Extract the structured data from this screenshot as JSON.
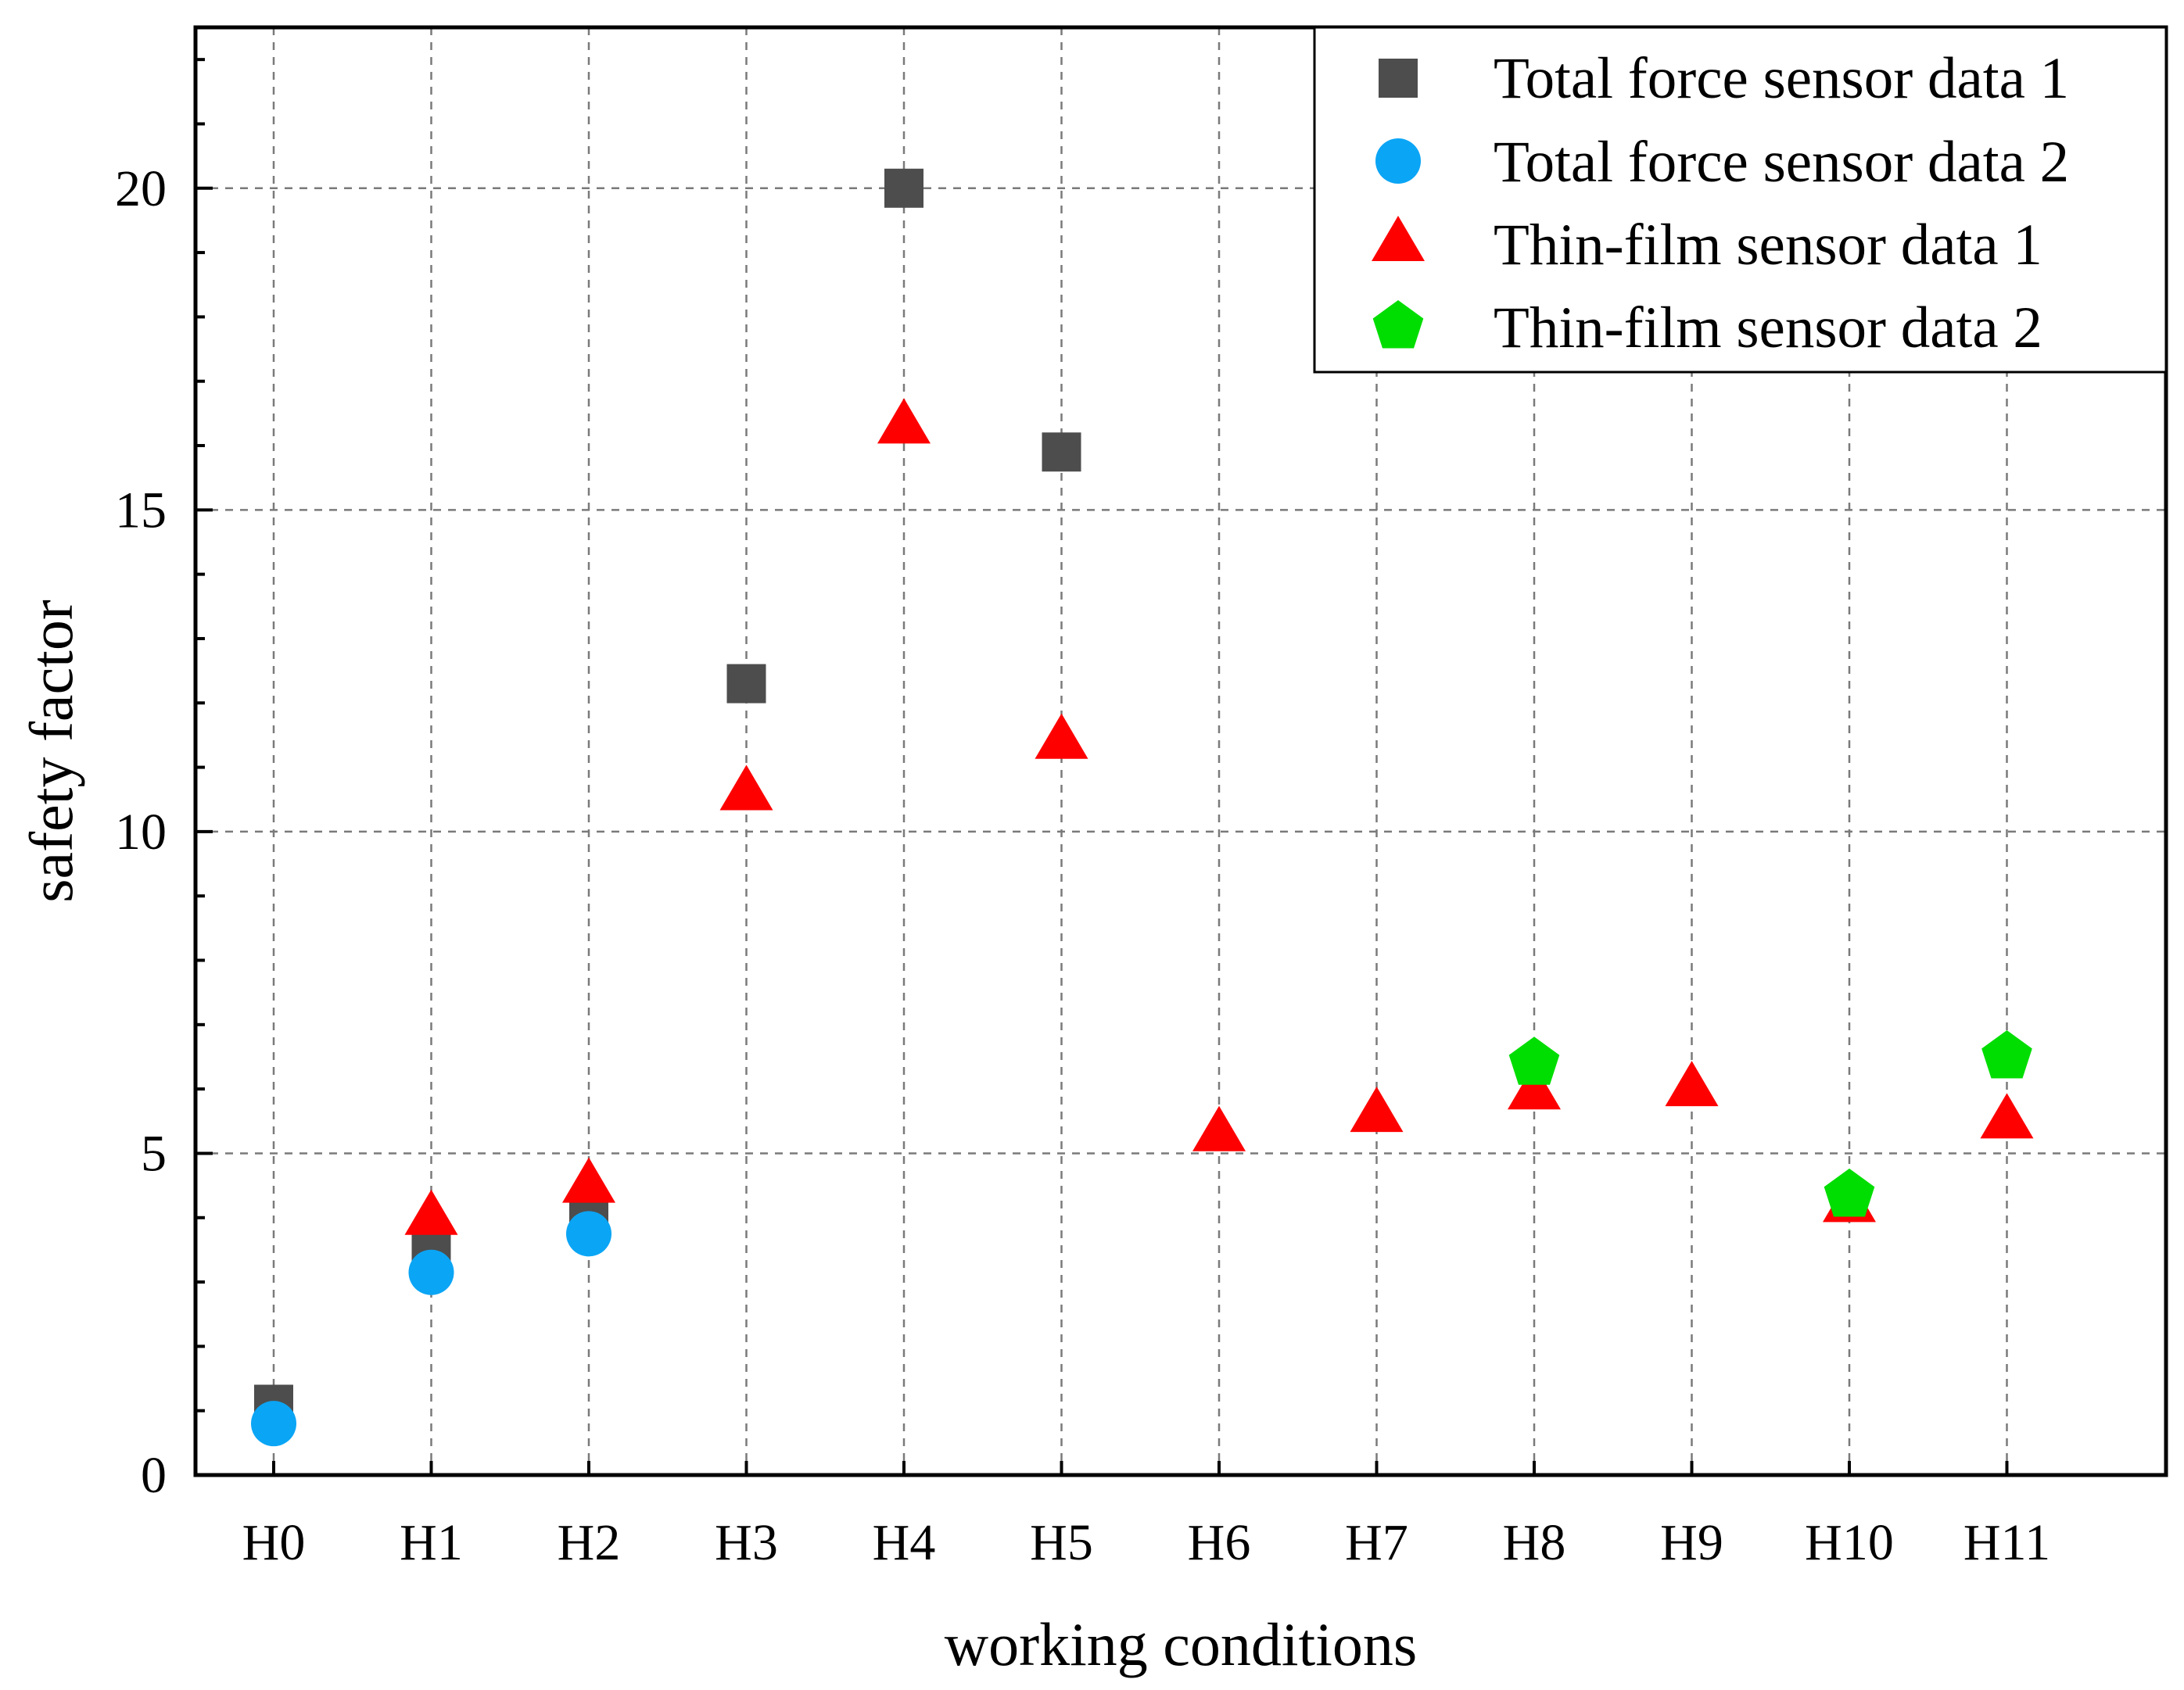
{
  "chart_data": {
    "type": "scatter",
    "title": "",
    "xlabel": "working conditions",
    "ylabel": "safety factor",
    "categories": [
      "H0",
      "H1",
      "H2",
      "H3",
      "H4",
      "H5",
      "H6",
      "H7",
      "H8",
      "H9",
      "H10",
      "H11"
    ],
    "ylim": [
      0,
      22.5
    ],
    "yticks": [
      0,
      5,
      10,
      15,
      20
    ],
    "yticklabels": [
      "0",
      "5",
      "10",
      "15",
      "20"
    ],
    "grid": true,
    "legend_position": "top-right",
    "series": [
      {
        "name": "Total force sensor data 1",
        "marker": "square",
        "color": "#4d4d4d",
        "values": [
          1.1,
          3.6,
          4.0,
          12.3,
          20.0,
          15.9,
          null,
          null,
          null,
          null,
          null,
          null
        ]
      },
      {
        "name": "Total force sensor data 2",
        "marker": "circle",
        "color": "#0ba5f5",
        "values": [
          0.8,
          3.15,
          3.75,
          null,
          null,
          null,
          null,
          null,
          null,
          null,
          null,
          null
        ]
      },
      {
        "name": "Thin-film sensor data 1",
        "marker": "triangle",
        "color": "#ff0000",
        "values": [
          null,
          4.0,
          4.5,
          10.6,
          16.3,
          11.4,
          5.3,
          5.6,
          5.95,
          6.0,
          4.2,
          5.5
        ]
      },
      {
        "name": "Thin-film sensor data 2",
        "marker": "pentagon",
        "color": "#00dd00",
        "values": [
          null,
          null,
          null,
          null,
          null,
          null,
          null,
          null,
          6.4,
          null,
          4.35,
          6.5
        ]
      }
    ]
  }
}
